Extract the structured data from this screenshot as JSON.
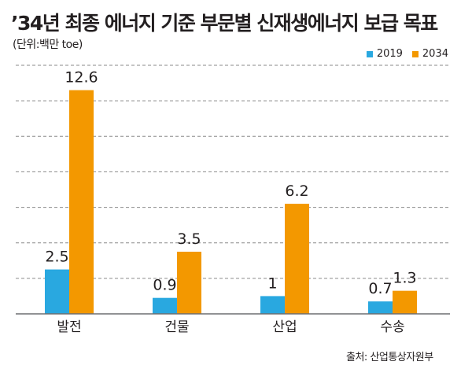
{
  "header": {
    "title": "’34년 최종 에너지 기준 부문별 신재생에너지 보급 목표",
    "unit": "(단위:백만 toe)"
  },
  "source": "출처: 산업통상자원부",
  "colors": {
    "2019": "#29a8e0",
    "2034": "#f39800"
  },
  "chart_data": {
    "type": "bar",
    "title": "’34년 최종 에너지 기준 부문별 신재생에너지 보급 목표",
    "ylabel": "(단위:백만 toe)",
    "xlabel": "",
    "categories": [
      "발전",
      "건물",
      "산업",
      "수송"
    ],
    "series": [
      {
        "name": "2019",
        "values": [
          2.5,
          0.9,
          1,
          0.7
        ],
        "labels": [
          "2.5",
          "0.9",
          "1",
          "0.7"
        ]
      },
      {
        "name": "2034",
        "values": [
          12.6,
          3.5,
          6.2,
          1.3
        ],
        "labels": [
          "12.6",
          "3.5",
          "6.2",
          "1.3"
        ]
      }
    ],
    "ylim": [
      0,
      14
    ],
    "grid_step": 2,
    "grid": true,
    "legend": "top-right"
  }
}
